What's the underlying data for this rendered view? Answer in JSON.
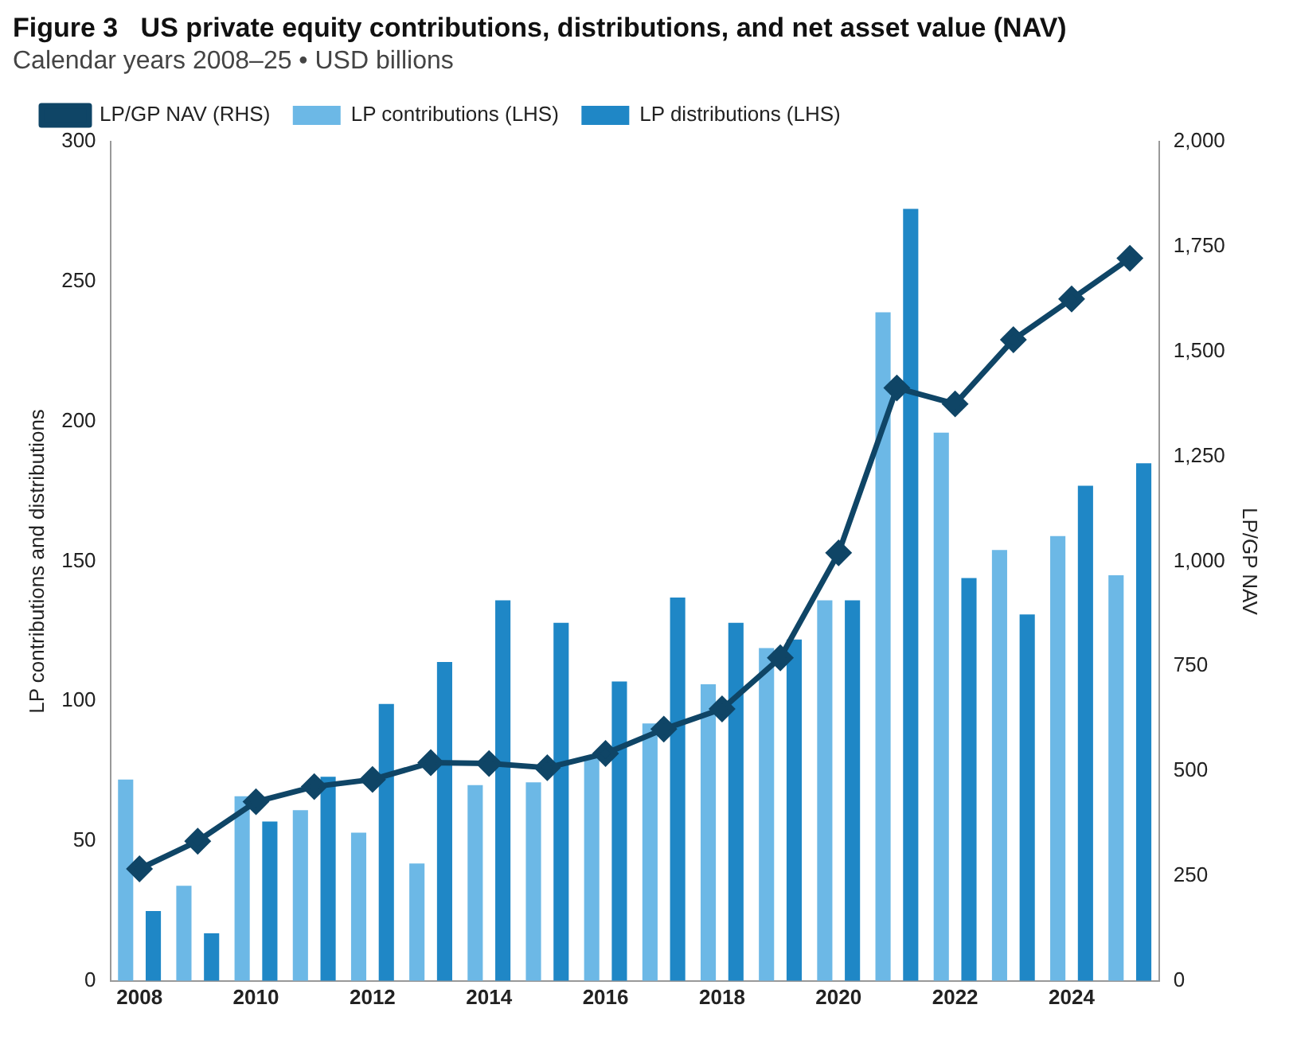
{
  "chart_data": {
    "type": "bar",
    "title": "Figure 3   US private equity contributions, distributions, and net asset value (NAV)",
    "subtitle": "Calendar years 2008–25 • USD billions",
    "categories": [
      "2008",
      null,
      "2010",
      null,
      "2012",
      null,
      "2014",
      null,
      "2016",
      null,
      "2018",
      null,
      "2020",
      null,
      "2022",
      null,
      "2024",
      null
    ],
    "series": [
      {
        "name": "LP contributions (LHS)",
        "color": "#6cb8e6",
        "values": [
          72,
          34,
          66,
          61,
          53,
          42,
          70,
          71,
          80,
          92,
          106,
          119,
          136,
          239,
          196,
          154,
          159,
          145
        ]
      },
      {
        "name": "LP distributions (LHS)",
        "color": "#1f87c6",
        "values": [
          25,
          17,
          57,
          73,
          99,
          114,
          136,
          128,
          107,
          137,
          128,
          122,
          136,
          276,
          144,
          131,
          177,
          185
        ]
      },
      {
        "name": "LP/GP NAV (RHS)",
        "type": "line",
        "axis": "y2",
        "color": "#0f4566",
        "marker": "diamond",
        "values": [
          267,
          333,
          427,
          463,
          480,
          520,
          518,
          508,
          542,
          600,
          648,
          770,
          1020,
          1413,
          1375,
          1528,
          1625,
          1722
        ]
      }
    ],
    "ylabel": "LP contributions and distributions",
    "y2label": "LP/GP NAV",
    "ylim": [
      0,
      300
    ],
    "yticks": [
      0,
      50,
      100,
      150,
      200,
      250,
      300
    ],
    "y2lim": [
      0,
      2000
    ],
    "y2ticks": [
      0,
      {
        "value": 250,
        "label": "250"
      },
      {
        "value": 500,
        "label": "500"
      },
      {
        "value": 750,
        "label": "750"
      },
      {
        "value": 1000,
        "label": "1,000"
      },
      {
        "value": 1250,
        "label": "1,250"
      },
      {
        "value": 1500,
        "label": "1,500"
      },
      {
        "value": 1750,
        "label": "1,750"
      },
      {
        "value": 2000,
        "label": "2,000"
      }
    ],
    "grid": false,
    "legend": "top left"
  }
}
